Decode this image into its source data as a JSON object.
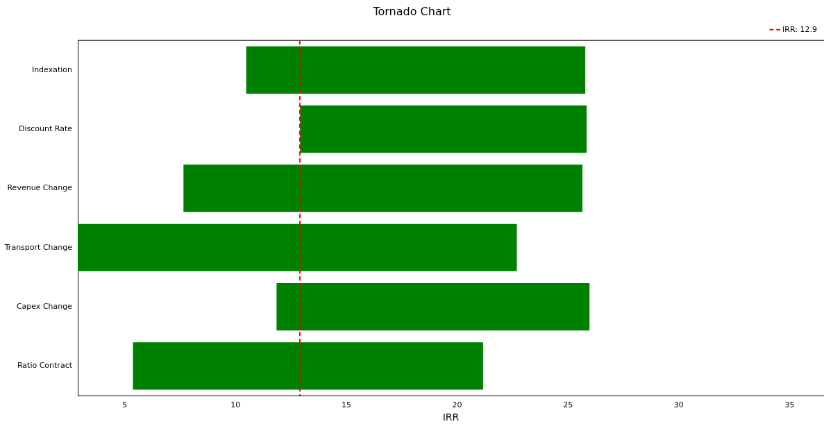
{
  "chart_data": {
    "type": "bar",
    "orientation": "horizontal",
    "title": "Tornado Chart",
    "xlabel": "IRR",
    "categories": [
      "Indexation",
      "Discount Rate",
      "Revenue Change",
      "Transport Change",
      "Capex Change",
      "Ratio Contract"
    ],
    "base": [
      10.48,
      12.91,
      7.65,
      2.88,
      11.85,
      5.37
    ],
    "values": [
      15.3,
      12.93,
      18.0,
      19.81,
      14.12,
      15.8
    ],
    "color": "#008000",
    "xlim": [
      2.88,
      36.55
    ],
    "xticks": [
      5,
      10,
      15,
      20,
      25,
      30,
      35
    ],
    "ref_lines": [
      {
        "axis": "x",
        "value": 12.9,
        "label": "IRR: 12.9",
        "color": "#ff0000",
        "line_style": "dashed"
      }
    ],
    "legend": "top right",
    "grid": false
  }
}
